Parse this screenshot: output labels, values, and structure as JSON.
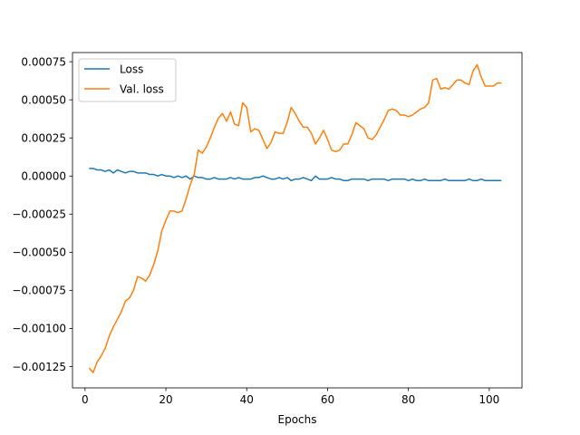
{
  "chart_data": {
    "type": "line",
    "title": "",
    "xlabel": "Epochs",
    "ylabel": "",
    "xlim": [
      -3.1,
      108.1
    ],
    "ylim": [
      -0.00139,
      0.00081
    ],
    "xticks": [
      0,
      20,
      40,
      60,
      80,
      100
    ],
    "yticks": [
      -0.00125,
      -0.001,
      -0.00075,
      -0.0005,
      -0.00025,
      0,
      0.00025,
      0.0005,
      0.00075
    ],
    "ytick_labels": [
      "−0.00125",
      "−0.00100",
      "−0.00075",
      "−0.00050",
      "−0.00025",
      "0.00000",
      "0.00025",
      "0.00050",
      "0.00075"
    ],
    "xtick_labels": [
      "0",
      "20",
      "40",
      "60",
      "80",
      "100"
    ],
    "grid": false,
    "legend_position": "top-left",
    "colors": {
      "Loss": "#1f77b4",
      "Val. loss": "#ff7f0e"
    },
    "series": [
      {
        "name": "Loss",
        "color": "#1f77b4",
        "x": [
          1,
          2,
          3,
          4,
          5,
          6,
          7,
          8,
          9,
          10,
          11,
          12,
          13,
          14,
          15,
          16,
          17,
          18,
          19,
          20,
          21,
          22,
          23,
          24,
          25,
          26,
          27,
          28,
          29,
          30,
          31,
          32,
          33,
          34,
          35,
          36,
          37,
          38,
          39,
          40,
          41,
          42,
          43,
          44,
          45,
          46,
          47,
          48,
          49,
          50,
          51,
          52,
          53,
          54,
          55,
          56,
          57,
          58,
          59,
          60,
          61,
          62,
          63,
          64,
          65,
          66,
          67,
          68,
          69,
          70,
          71,
          72,
          73,
          74,
          75,
          76,
          77,
          78,
          79,
          80,
          81,
          82,
          83,
          84,
          85,
          86,
          87,
          88,
          89,
          90,
          91,
          92,
          93,
          94,
          95,
          96,
          97,
          98,
          99,
          100,
          101,
          102,
          103
        ],
        "values": [
          5e-05,
          5e-05,
          4e-05,
          4e-05,
          3e-05,
          4e-05,
          2e-05,
          4e-05,
          3e-05,
          2e-05,
          3e-05,
          3e-05,
          2e-05,
          2e-05,
          2e-05,
          1e-05,
          1e-05,
          0.0,
          1e-05,
          0.0,
          0.0,
          -1e-05,
          0.0,
          -1e-05,
          0.0,
          -2e-05,
          0.0,
          -1e-05,
          -1e-05,
          -2e-05,
          -2e-05,
          -1e-05,
          -2e-05,
          -2e-05,
          -2e-05,
          -1e-05,
          -2e-05,
          -1e-05,
          -2e-05,
          -2e-05,
          -2e-05,
          -1e-05,
          -1e-05,
          0.0,
          -1e-05,
          -2e-05,
          -2e-05,
          -1e-05,
          -2e-05,
          -1e-05,
          -3e-05,
          -2e-05,
          -2e-05,
          -1e-05,
          -2e-05,
          -3e-05,
          0.0,
          -2e-05,
          -2e-05,
          -2e-05,
          -1e-05,
          -2e-05,
          -2e-05,
          -3e-05,
          -3e-05,
          -2e-05,
          -2e-05,
          -2e-05,
          -2e-05,
          -3e-05,
          -2e-05,
          -2e-05,
          -2e-05,
          -2e-05,
          -3e-05,
          -2e-05,
          -2e-05,
          -2e-05,
          -2e-05,
          -3e-05,
          -2e-05,
          -3e-05,
          -3e-05,
          -2e-05,
          -3e-05,
          -3e-05,
          -3e-05,
          -3e-05,
          -2e-05,
          -3e-05,
          -3e-05,
          -3e-05,
          -3e-05,
          -3e-05,
          -2e-05,
          -3e-05,
          -3e-05,
          -2e-05,
          -3e-05,
          -3e-05,
          -3e-05,
          -3e-05,
          -3e-05
        ]
      },
      {
        "name": "Val. loss",
        "color": "#ff7f0e",
        "x": [
          1,
          2,
          3,
          4,
          5,
          6,
          7,
          8,
          9,
          10,
          11,
          12,
          13,
          14,
          15,
          16,
          17,
          18,
          19,
          20,
          21,
          22,
          23,
          24,
          25,
          26,
          27,
          28,
          29,
          30,
          31,
          32,
          33,
          34,
          35,
          36,
          37,
          38,
          39,
          40,
          41,
          42,
          43,
          44,
          45,
          46,
          47,
          48,
          49,
          50,
          51,
          52,
          53,
          54,
          55,
          56,
          57,
          58,
          59,
          60,
          61,
          62,
          63,
          64,
          65,
          66,
          67,
          68,
          69,
          70,
          71,
          72,
          73,
          74,
          75,
          76,
          77,
          78,
          79,
          80,
          81,
          82,
          83,
          84,
          85,
          86,
          87,
          88,
          89,
          90,
          91,
          92,
          93,
          94,
          95,
          96,
          97,
          98,
          99,
          100,
          101,
          102,
          103
        ],
        "values": [
          -0.00126,
          -0.00129,
          -0.00122,
          -0.00118,
          -0.00113,
          -0.00105,
          -0.00099,
          -0.00094,
          -0.00089,
          -0.00082,
          -0.0008,
          -0.00075,
          -0.00066,
          -0.00067,
          -0.00069,
          -0.00065,
          -0.00058,
          -0.00049,
          -0.00036,
          -0.00029,
          -0.00023,
          -0.00023,
          -0.00024,
          -0.00023,
          -0.00015,
          -6e-05,
          1e-05,
          0.00017,
          0.00015,
          0.00019,
          0.00025,
          0.00032,
          0.00038,
          0.00041,
          0.00036,
          0.00042,
          0.00034,
          0.00033,
          0.00048,
          0.00045,
          0.00029,
          0.00031,
          0.0003,
          0.00024,
          0.00018,
          0.00022,
          0.00029,
          0.00028,
          0.00028,
          0.00035,
          0.00045,
          0.00041,
          0.00036,
          0.00032,
          0.00032,
          0.00028,
          0.00021,
          0.00025,
          0.0003,
          0.00024,
          0.00017,
          0.00016,
          0.00017,
          0.00021,
          0.00021,
          0.00027,
          0.00035,
          0.00033,
          0.00031,
          0.00025,
          0.00024,
          0.00027,
          0.00032,
          0.00037,
          0.00043,
          0.00044,
          0.00043,
          0.0004,
          0.0004,
          0.00039,
          0.0004,
          0.00042,
          0.00044,
          0.00045,
          0.00048,
          0.00063,
          0.00064,
          0.00057,
          0.00058,
          0.00057,
          0.0006,
          0.00063,
          0.00063,
          0.00061,
          0.0006,
          0.00069,
          0.00073,
          0.00065,
          0.00059,
          0.00059,
          0.00059,
          0.00061,
          0.00061
        ]
      }
    ]
  }
}
